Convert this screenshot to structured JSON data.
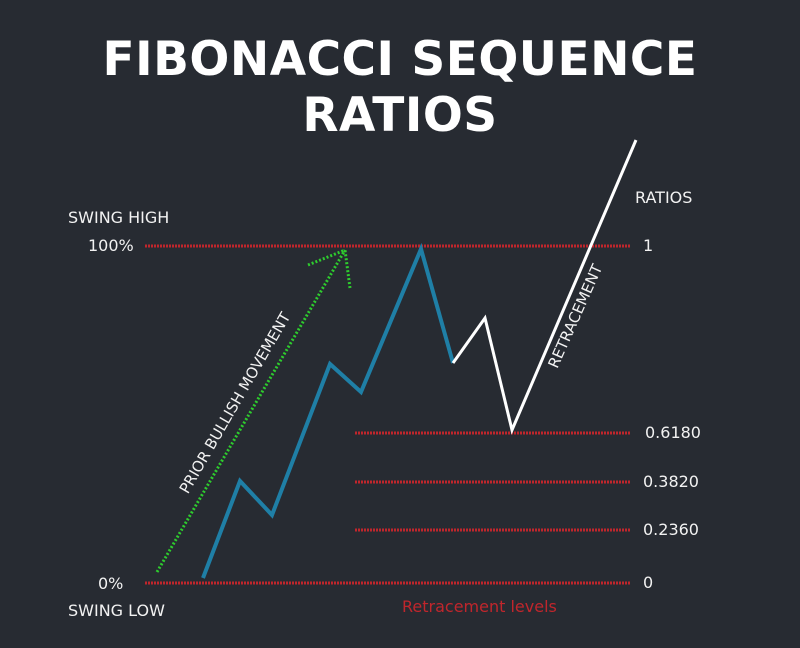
{
  "title": {
    "line1": "FIBONACCI SEQUENCE",
    "line2": "RATIOS"
  },
  "left_labels": {
    "swing_high": "SWING HIGH",
    "high_pct": "100%",
    "low_pct": "0%",
    "swing_low": "SWING LOW"
  },
  "ratios_header": "RATIOS",
  "levels": [
    {
      "ratio": "1"
    },
    {
      "ratio": "0.6180"
    },
    {
      "ratio": "0.3820"
    },
    {
      "ratio": "0.2360"
    },
    {
      "ratio": "0"
    }
  ],
  "annotations": {
    "prior_move": "PRIOR BULLISH MOVEMENT",
    "retracement": "RETRACEMENT",
    "retracement_levels": "Retracement levels"
  },
  "colors": {
    "background": "#272b32",
    "level_line": "#c0262c",
    "uptrend": "#1f7fa6",
    "retrace": "#ffffff",
    "arrow": "#2ecc2e",
    "caption": "#c0262c"
  }
}
